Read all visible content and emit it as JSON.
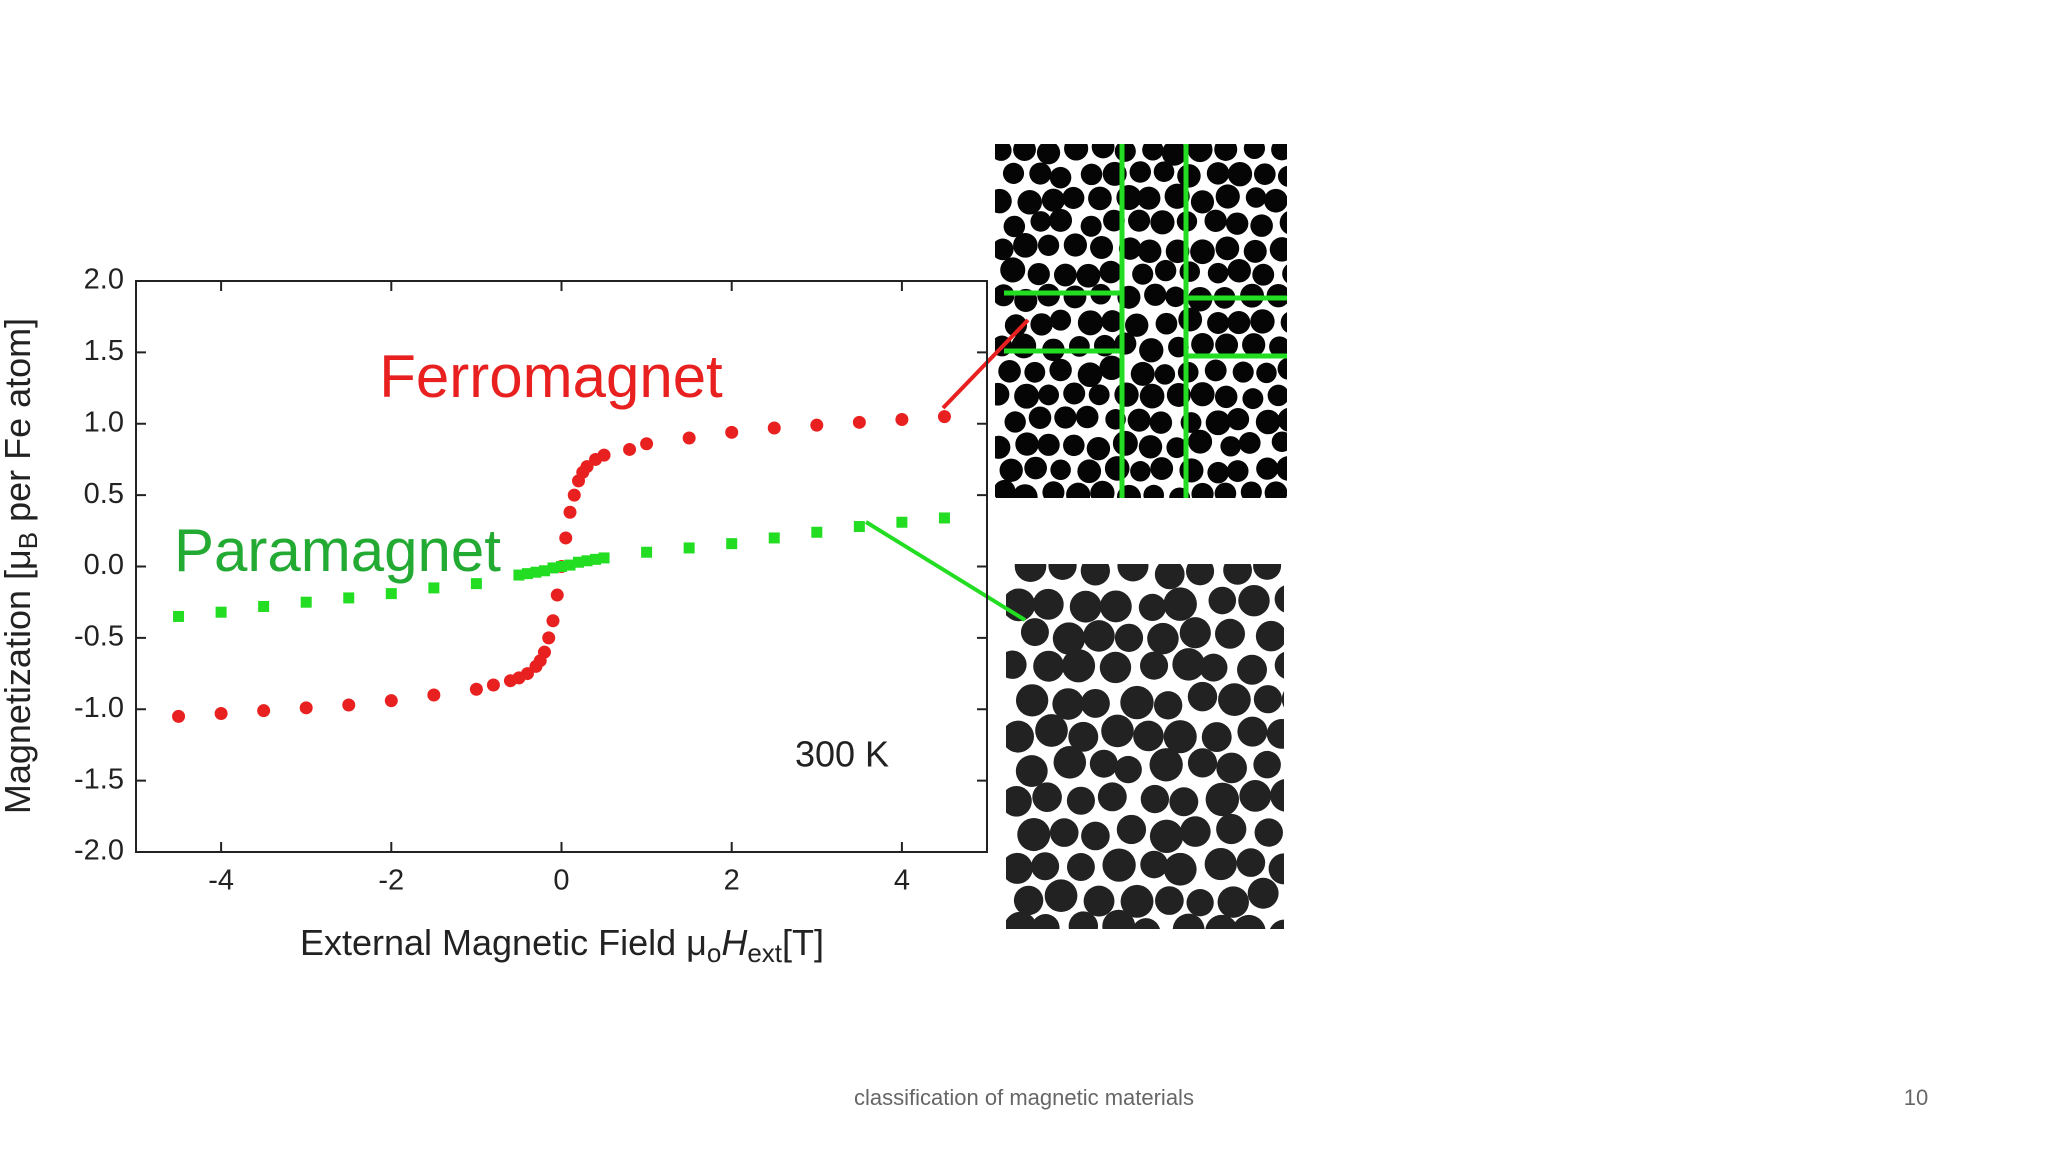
{
  "chart_data": {
    "type": "scatter",
    "xlabel_parts": [
      "External Magnetic Field μ",
      "o",
      "H",
      "ext",
      "[T]"
    ],
    "ylabel_parts": [
      "Magnetization [μ",
      "B",
      " per Fe atom]"
    ],
    "annotations": [
      "Ferromagnet",
      "Paramagnet",
      "300 K"
    ],
    "xlim": [
      -5,
      5
    ],
    "ylim": [
      -2,
      2
    ],
    "xticks": [
      -4,
      -2,
      0,
      2,
      4
    ],
    "yticks": [
      {
        "value": -2,
        "label": "-2.0"
      },
      {
        "value": -1.5,
        "label": "-1.5"
      },
      {
        "value": -1,
        "label": "-1.0"
      },
      {
        "value": -0.5,
        "label": "-0.5"
      },
      {
        "value": 0,
        "label": "0.0"
      },
      {
        "value": 0.5,
        "label": "0.5"
      },
      {
        "value": 1,
        "label": "1.0"
      },
      {
        "value": 1.5,
        "label": "1.5"
      },
      {
        "value": 2,
        "label": "2.0"
      }
    ],
    "grid": false,
    "series": [
      {
        "name": "Ferromagnet",
        "color": "#e8201f",
        "marker": "circle",
        "x": [
          -4.5,
          -4,
          -3.5,
          -3,
          -2.5,
          -2,
          -1.5,
          -1,
          -0.8,
          -0.6,
          -0.5,
          -0.4,
          -0.3,
          -0.25,
          -0.2,
          -0.15,
          -0.1,
          -0.05,
          0,
          0.05,
          0.1,
          0.15,
          0.2,
          0.25,
          0.3,
          0.4,
          0.5,
          0.8,
          1,
          1.5,
          2,
          2.5,
          3,
          3.5,
          4,
          4.5
        ],
        "values": [
          -1.05,
          -1.03,
          -1.01,
          -0.99,
          -0.97,
          -0.94,
          -0.9,
          -0.86,
          -0.83,
          -0.8,
          -0.78,
          -0.75,
          -0.7,
          -0.66,
          -0.6,
          -0.5,
          -0.38,
          -0.2,
          0,
          0.2,
          0.38,
          0.5,
          0.6,
          0.66,
          0.7,
          0.75,
          0.78,
          0.82,
          0.86,
          0.9,
          0.94,
          0.97,
          0.99,
          1.01,
          1.03,
          1.05
        ]
      },
      {
        "name": "Paramagnet",
        "color": "#22dd22",
        "marker": "square",
        "x": [
          -4.5,
          -4,
          -3.5,
          -3,
          -2.5,
          -2,
          -1.5,
          -1,
          -0.5,
          -0.4,
          -0.3,
          -0.2,
          -0.1,
          0,
          0.1,
          0.2,
          0.3,
          0.4,
          0.5,
          1,
          1.5,
          2,
          2.5,
          3,
          3.5,
          4,
          4.5
        ],
        "values": [
          -0.35,
          -0.32,
          -0.28,
          -0.25,
          -0.22,
          -0.19,
          -0.15,
          -0.12,
          -0.06,
          -0.05,
          -0.04,
          -0.03,
          -0.01,
          0,
          0.01,
          0.03,
          0.04,
          0.05,
          0.06,
          0.1,
          0.13,
          0.16,
          0.2,
          0.24,
          0.28,
          0.31,
          0.34
        ]
      }
    ]
  },
  "footer": "classification of magnetic materials",
  "page_number": "10"
}
